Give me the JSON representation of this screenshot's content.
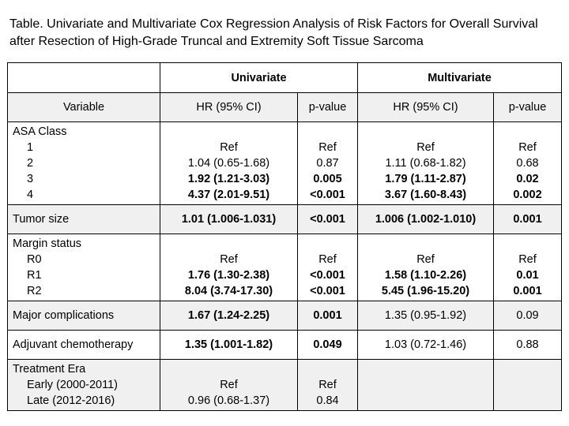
{
  "caption": {
    "line1": "Table.  Univariate and Multivariate Cox Regression Analysis of Risk Factors for Overall Survival",
    "line2": "after Resection of High-Grade Truncal and Extremity Soft Tissue Sarcoma"
  },
  "headers": {
    "group_univariate": "Univariate",
    "group_multivariate": "Multivariate",
    "variable": "Variable",
    "uni_hr": "HR (95% CI)",
    "uni_p": "p-value",
    "multi_hr": "HR (95% CI)",
    "multi_p": "p-value"
  },
  "rows": {
    "asa": {
      "title": "ASA Class",
      "levels": [
        "1",
        "2",
        "3",
        "4"
      ],
      "uni_hr": [
        "Ref",
        "1.04 (0.65-1.68)",
        "1.92 (1.21-3.03)",
        "4.37 (2.01-9.51)"
      ],
      "uni_p": [
        "Ref",
        "0.87",
        "0.005",
        "<0.001"
      ],
      "multi_hr": [
        "Ref",
        "1.11 (0.68-1.82)",
        "1.79 (1.11-2.87)",
        "3.67 (1.60-8.43)"
      ],
      "multi_p": [
        "Ref",
        "0.68",
        "0.02",
        "0.002"
      ]
    },
    "tumor": {
      "title": "Tumor size",
      "uni_hr": "1.01 (1.006-1.031)",
      "uni_p": "<0.001",
      "multi_hr": "1.006 (1.002-1.010)",
      "multi_p": "0.001"
    },
    "margin": {
      "title": "Margin status",
      "levels": [
        "R0",
        "R1",
        "R2"
      ],
      "uni_hr": [
        "Ref",
        "1.76 (1.30-2.38)",
        "8.04 (3.74-17.30)"
      ],
      "uni_p": [
        "Ref",
        "<0.001",
        "<0.001"
      ],
      "multi_hr": [
        "Ref",
        "1.58 (1.10-2.26)",
        "5.45 (1.96-15.20)"
      ],
      "multi_p": [
        "Ref",
        "0.01",
        "0.001"
      ]
    },
    "complications": {
      "title": "Major complications",
      "uni_hr": "1.67 (1.24-2.25)",
      "uni_p": "0.001",
      "multi_hr": "1.35 (0.95-1.92)",
      "multi_p": "0.09"
    },
    "chemo": {
      "title": "Adjuvant chemotherapy",
      "uni_hr": "1.35 (1.001-1.82)",
      "uni_p": "0.049",
      "multi_hr": "1.03 (0.72-1.46)",
      "multi_p": "0.88"
    },
    "era": {
      "title": "Treatment Era",
      "levels": [
        "Early (2000-2011)",
        "Late (2012-2016)"
      ],
      "uni_hr": [
        "Ref",
        "0.96 (0.68-1.37)"
      ],
      "uni_p": [
        "Ref",
        "0.84"
      ]
    }
  }
}
